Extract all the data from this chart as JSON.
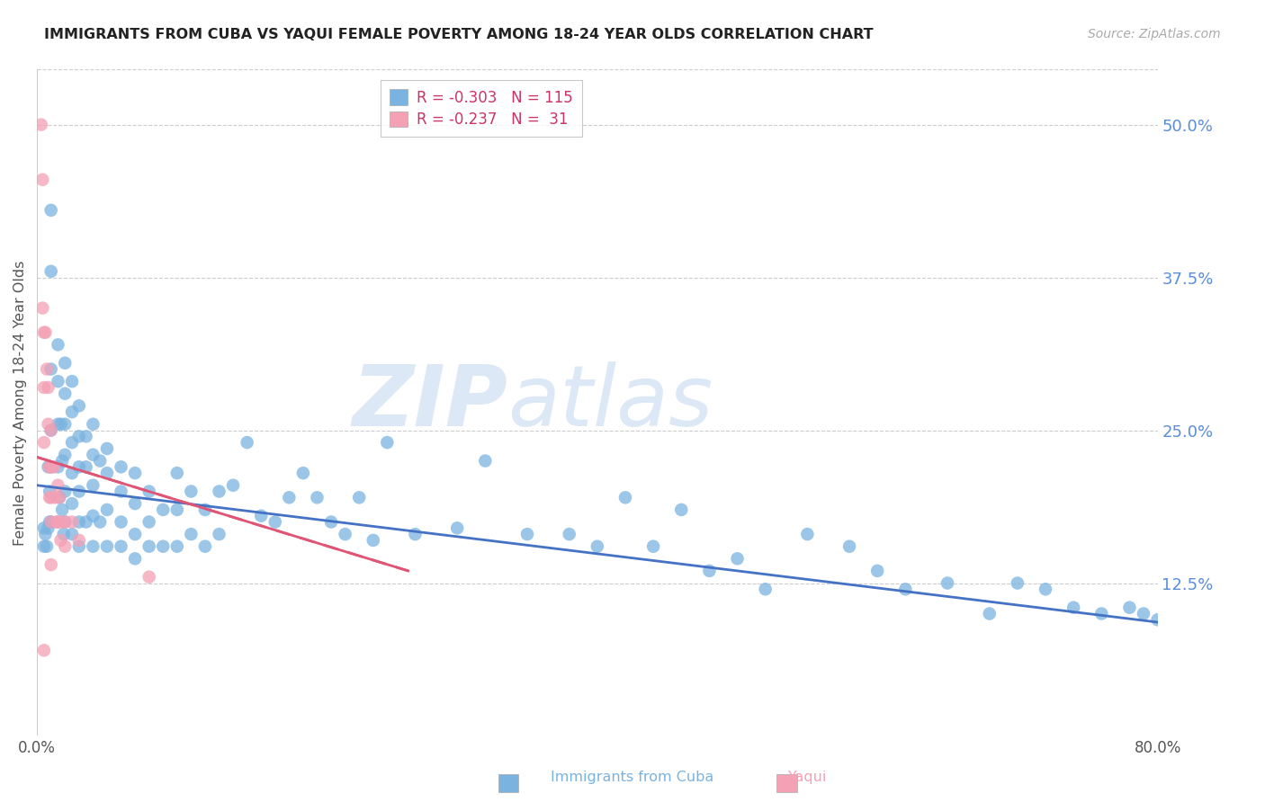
{
  "title": "IMMIGRANTS FROM CUBA VS YAQUI FEMALE POVERTY AMONG 18-24 YEAR OLDS CORRELATION CHART",
  "source": "Source: ZipAtlas.com",
  "ylabel": "Female Poverty Among 18-24 Year Olds",
  "right_yticks": [
    "50.0%",
    "37.5%",
    "25.0%",
    "12.5%"
  ],
  "right_ytick_vals": [
    0.5,
    0.375,
    0.25,
    0.125
  ],
  "xmin": 0.0,
  "xmax": 0.8,
  "ymin": 0.0,
  "ymax": 0.545,
  "legend_r1": "R = -0.303",
  "legend_n1": "N = 115",
  "legend_r2": "R = -0.237",
  "legend_n2": "N =  31",
  "color_cuba": "#7ab3e0",
  "color_yaqui": "#f4a0b5",
  "color_line_cuba": "#4472c4",
  "color_line_yaqui": "#e05575",
  "color_right_axis": "#5b8dd9",
  "watermark_zip": "ZIP",
  "watermark_atlas": "atlas",
  "cuba_line_x0": 0.0,
  "cuba_line_y0": 0.205,
  "cuba_line_x1": 0.8,
  "cuba_line_y1": 0.093,
  "yaqui_line_x0": 0.0,
  "yaqui_line_y0": 0.228,
  "yaqui_line_x1": 0.265,
  "yaqui_line_y1": 0.135,
  "cuba_x": [
    0.005,
    0.005,
    0.006,
    0.007,
    0.008,
    0.008,
    0.009,
    0.009,
    0.01,
    0.01,
    0.01,
    0.01,
    0.01,
    0.01,
    0.015,
    0.015,
    0.015,
    0.015,
    0.015,
    0.016,
    0.017,
    0.018,
    0.018,
    0.019,
    0.02,
    0.02,
    0.02,
    0.02,
    0.02,
    0.02,
    0.025,
    0.025,
    0.025,
    0.025,
    0.025,
    0.025,
    0.03,
    0.03,
    0.03,
    0.03,
    0.03,
    0.03,
    0.035,
    0.035,
    0.035,
    0.04,
    0.04,
    0.04,
    0.04,
    0.04,
    0.045,
    0.045,
    0.05,
    0.05,
    0.05,
    0.05,
    0.06,
    0.06,
    0.06,
    0.06,
    0.07,
    0.07,
    0.07,
    0.07,
    0.08,
    0.08,
    0.08,
    0.09,
    0.09,
    0.1,
    0.1,
    0.1,
    0.11,
    0.11,
    0.12,
    0.12,
    0.13,
    0.13,
    0.14,
    0.15,
    0.16,
    0.17,
    0.18,
    0.19,
    0.2,
    0.21,
    0.22,
    0.23,
    0.24,
    0.25,
    0.27,
    0.3,
    0.32,
    0.35,
    0.38,
    0.4,
    0.42,
    0.44,
    0.46,
    0.48,
    0.5,
    0.52,
    0.55,
    0.58,
    0.6,
    0.62,
    0.65,
    0.68,
    0.7,
    0.72,
    0.74,
    0.76,
    0.78,
    0.79,
    0.8
  ],
  "cuba_y": [
    0.17,
    0.155,
    0.165,
    0.155,
    0.22,
    0.17,
    0.2,
    0.175,
    0.43,
    0.38,
    0.3,
    0.25,
    0.22,
    0.175,
    0.32,
    0.29,
    0.255,
    0.22,
    0.175,
    0.195,
    0.255,
    0.225,
    0.185,
    0.165,
    0.305,
    0.28,
    0.255,
    0.23,
    0.2,
    0.175,
    0.29,
    0.265,
    0.24,
    0.215,
    0.19,
    0.165,
    0.27,
    0.245,
    0.22,
    0.2,
    0.175,
    0.155,
    0.245,
    0.22,
    0.175,
    0.255,
    0.23,
    0.205,
    0.18,
    0.155,
    0.225,
    0.175,
    0.235,
    0.215,
    0.185,
    0.155,
    0.22,
    0.2,
    0.175,
    0.155,
    0.215,
    0.19,
    0.165,
    0.145,
    0.2,
    0.175,
    0.155,
    0.185,
    0.155,
    0.215,
    0.185,
    0.155,
    0.2,
    0.165,
    0.185,
    0.155,
    0.2,
    0.165,
    0.205,
    0.24,
    0.18,
    0.175,
    0.195,
    0.215,
    0.195,
    0.175,
    0.165,
    0.195,
    0.16,
    0.24,
    0.165,
    0.17,
    0.225,
    0.165,
    0.165,
    0.155,
    0.195,
    0.155,
    0.185,
    0.135,
    0.145,
    0.12,
    0.165,
    0.155,
    0.135,
    0.12,
    0.125,
    0.1,
    0.125,
    0.12,
    0.105,
    0.1,
    0.105,
    0.1,
    0.095
  ],
  "yaqui_x": [
    0.003,
    0.004,
    0.004,
    0.005,
    0.005,
    0.005,
    0.005,
    0.006,
    0.007,
    0.008,
    0.008,
    0.009,
    0.009,
    0.01,
    0.01,
    0.01,
    0.01,
    0.01,
    0.012,
    0.013,
    0.014,
    0.015,
    0.015,
    0.016,
    0.017,
    0.018,
    0.02,
    0.02,
    0.025,
    0.03,
    0.08
  ],
  "yaqui_y": [
    0.5,
    0.455,
    0.35,
    0.33,
    0.285,
    0.24,
    0.07,
    0.33,
    0.3,
    0.285,
    0.255,
    0.22,
    0.195,
    0.25,
    0.22,
    0.195,
    0.175,
    0.14,
    0.22,
    0.195,
    0.175,
    0.205,
    0.175,
    0.195,
    0.16,
    0.175,
    0.175,
    0.155,
    0.175,
    0.16,
    0.13
  ]
}
